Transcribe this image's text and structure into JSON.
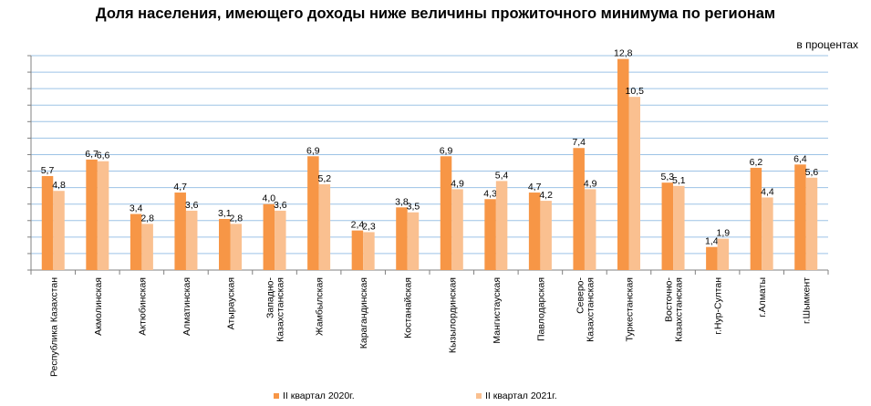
{
  "chart_data": {
    "type": "bar",
    "title": "Доля населения, имеющего доходы ниже величины прожиточного минимума по регионам",
    "unit": "в процентах",
    "categories": [
      "Республика Казахстан",
      "Акмолинская",
      "Актюбинская",
      "Алматинская",
      "Атырауская",
      "Западно-Казахстанская",
      "Жамбылская",
      "Карагандинская",
      "Костанайская",
      "Кызылординская",
      "Мангистауская",
      "Павлодарская",
      "Северо-Казахстанская",
      "Туркестанская",
      "Восточно-Казахстанская",
      "г.Нур-Султан",
      "г.Алматы",
      "г.Шымкент"
    ],
    "category_lines": [
      [
        "Республика Казахстан"
      ],
      [
        "Акмолинская"
      ],
      [
        "Актюбинская"
      ],
      [
        "Алматинская"
      ],
      [
        "Атырауская"
      ],
      [
        "Западно-",
        "Казахстанская"
      ],
      [
        "Жамбылская"
      ],
      [
        "Карагандинская"
      ],
      [
        "Костанайская"
      ],
      [
        "Кызылординская"
      ],
      [
        "Мангистауская"
      ],
      [
        "Павлодарская"
      ],
      [
        "Северо-",
        "Казахстанская"
      ],
      [
        "Туркестанская"
      ],
      [
        "Восточно-",
        "Казахстанская"
      ],
      [
        "г.Нур-Султан"
      ],
      [
        "г.Алматы"
      ],
      [
        "г.Шымкент"
      ]
    ],
    "series": [
      {
        "name": "II квартал 2020г.",
        "color": "#F79646",
        "values": [
          5.7,
          6.7,
          3.4,
          4.7,
          3.1,
          4.0,
          6.9,
          2.4,
          3.8,
          6.9,
          4.3,
          4.7,
          7.4,
          12.8,
          5.3,
          1.4,
          6.2,
          6.4
        ],
        "labels": [
          "5,7",
          "6,7",
          "3,4",
          "4,7",
          "3,1",
          "4,0",
          "6,9",
          "2,4",
          "3,8",
          "6,9",
          "4,3",
          "4,7",
          "7,4",
          "12,8",
          "5,3",
          "1,4",
          "6,2",
          "6,4"
        ]
      },
      {
        "name": "II квартал 2021г.",
        "color": "#FAC090",
        "values": [
          4.8,
          6.6,
          2.8,
          3.6,
          2.8,
          3.6,
          5.2,
          2.3,
          3.5,
          4.9,
          5.4,
          4.2,
          4.9,
          10.5,
          5.1,
          1.9,
          4.4,
          5.6
        ],
        "labels": [
          "4,8",
          "6,6",
          "2,8",
          "3,6",
          "2,8",
          "3,6",
          "5,2",
          "2,3",
          "3,5",
          "4,9",
          "5,4",
          "4,2",
          "4,9",
          "10,5",
          "5,1",
          "1,9",
          "4,4",
          "5,6"
        ]
      }
    ],
    "ylim": [
      0,
      13
    ],
    "grid": true,
    "gridline_color": "#9DC3E6",
    "legend_position": "bottom"
  }
}
